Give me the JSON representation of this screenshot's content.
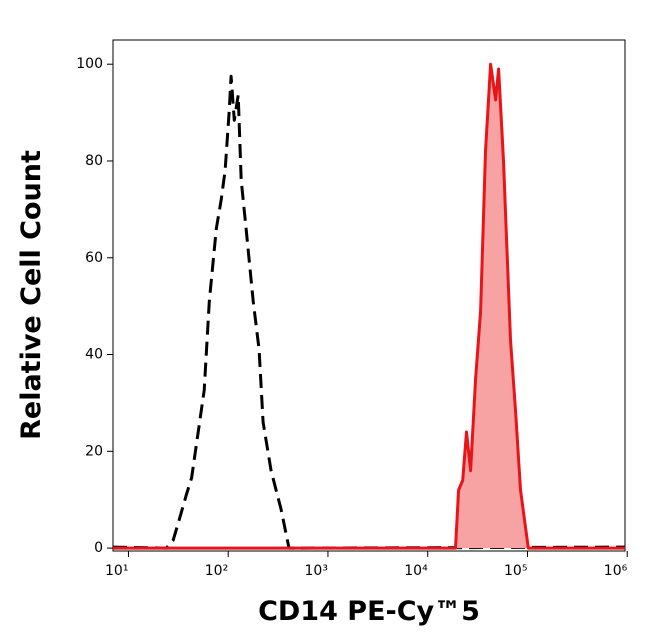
{
  "chart_data": {
    "type": "histogram-overlay",
    "x_label": "CD14 PE-Cy™5",
    "y_label": "Relative Cell Count",
    "xscale": "log",
    "xlim": [
      7,
      950000
    ],
    "ylim": [
      -0.6,
      105
    ],
    "xticks": [
      {
        "value": 10,
        "label": "10¹"
      },
      {
        "value": 100,
        "label": "10²"
      },
      {
        "value": 1000,
        "label": "10³"
      },
      {
        "value": 10000,
        "label": "10⁴"
      },
      {
        "value": 100000,
        "label": "10⁵"
      },
      {
        "value": 1000000,
        "label": "10⁶"
      }
    ],
    "yticks": [
      0,
      20,
      40,
      60,
      80,
      100
    ],
    "series": [
      {
        "color": "#000000",
        "dash": true,
        "fill": null,
        "x": [
          7,
          24,
          28,
          32.4,
          38,
          43,
          50,
          57.5,
          64.6,
          75.9,
          85,
          93,
          102,
          107,
          115,
          126,
          135,
          151,
          178,
          204,
          224,
          269,
          339,
          407,
          537,
          950000
        ],
        "values": [
          0.2,
          0,
          1.6,
          6,
          11,
          14.5,
          24,
          32.6,
          51,
          66,
          72,
          78,
          90,
          97.5,
          88.4,
          93.6,
          76,
          66,
          51,
          41,
          26,
          16,
          8,
          0,
          0,
          0.2
        ]
      },
      {
        "color": "#e8141a",
        "dash": false,
        "fill": "#f7a3a3",
        "x": [
          7,
          19000,
          20400,
          22400,
          24500,
          26900,
          30200,
          33900,
          38000,
          42700,
          47900,
          51300,
          57500,
          67600,
          75900,
          85100,
          102000,
          950000
        ],
        "values": [
          0,
          0,
          12,
          14,
          24,
          16,
          35,
          49,
          82,
          100,
          92.6,
          99,
          80,
          43,
          28.5,
          12,
          0,
          0
        ]
      }
    ]
  }
}
